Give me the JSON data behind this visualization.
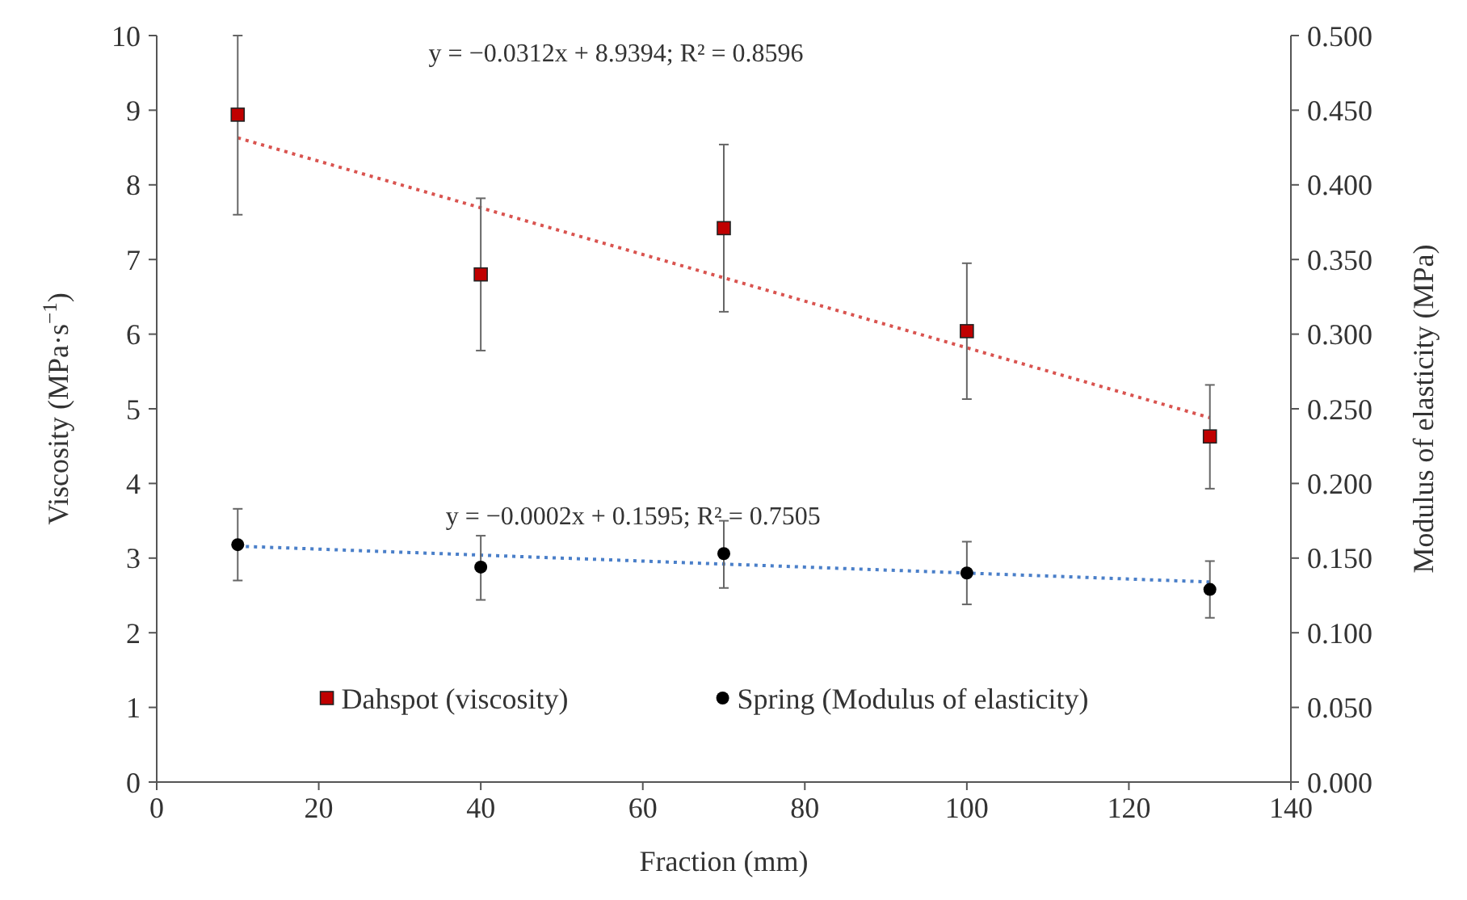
{
  "chart_data": {
    "type": "scatter",
    "xlabel": "Fraction (mm)",
    "ylabel": "Viscosity (MPa·s$^{−1}$)",
    "y2label": "Modulus of elasticity (MPa)",
    "xlim": [
      0,
      140
    ],
    "xticks": [
      0,
      20,
      40,
      60,
      80,
      100,
      120,
      140
    ],
    "ylim": [
      0,
      10
    ],
    "yticks": [
      0,
      1,
      2,
      3,
      4,
      5,
      6,
      7,
      8,
      9,
      10
    ],
    "y2lim": [
      0,
      0.5
    ],
    "y2ticks": [
      {
        "value": 0,
        "label": "0.000"
      },
      {
        "value": 0.05,
        "label": "0.050"
      },
      {
        "value": 0.1,
        "label": "0.100"
      },
      {
        "value": 0.15,
        "label": "0.150"
      },
      {
        "value": 0.2,
        "label": "0.200"
      },
      {
        "value": 0.25,
        "label": "0.250"
      },
      {
        "value": 0.3,
        "label": "0.300"
      },
      {
        "value": 0.35,
        "label": "0.350"
      },
      {
        "value": 0.4,
        "label": "0.400"
      },
      {
        "value": 0.45,
        "label": "0.450"
      },
      {
        "value": 0.5,
        "label": "0.500"
      }
    ],
    "legend": "bottom",
    "grid": false,
    "series": [
      {
        "name": "Dahspot (viscosity)",
        "marker": "square",
        "color": "#c00000",
        "x": [
          10,
          40,
          70,
          100,
          130
        ],
        "values": [
          8.94,
          6.8,
          7.42,
          6.04,
          4.63
        ],
        "errors": [
          [
            7.6,
            10.0
          ],
          [
            5.78,
            7.82
          ],
          [
            6.3,
            8.54
          ],
          [
            5.13,
            6.95
          ],
          [
            3.93,
            5.32
          ]
        ]
      },
      {
        "name": "Spring (Modulus of elasticity)",
        "marker": "circle",
        "color": "#000000",
        "axis": "y2",
        "x": [
          10,
          40,
          70,
          100,
          130
        ],
        "values": [
          0.159,
          0.144,
          0.153,
          0.14,
          0.129
        ],
        "errors": [
          [
            0.135,
            0.183
          ],
          [
            0.122,
            0.165
          ],
          [
            0.13,
            0.175
          ],
          [
            0.119,
            0.161
          ],
          [
            0.11,
            0.148
          ]
        ]
      },
      {
        "type": "line",
        "marker": "none",
        "line_style": "dotted",
        "color": "#d9534f",
        "x": [
          10,
          130
        ],
        "values": [
          8.63,
          4.88
        ]
      },
      {
        "type": "line",
        "marker": "none",
        "line_style": "dotted",
        "color": "#4a7fc9",
        "axis": "y2",
        "x": [
          10,
          130
        ],
        "values": [
          0.158,
          0.134
        ]
      }
    ],
    "annotations": [
      "y = −0.0312x + 8.9394; R² = 0.8596",
      "y = −0.0002x + 0.1595; R² = 0.7505"
    ]
  }
}
